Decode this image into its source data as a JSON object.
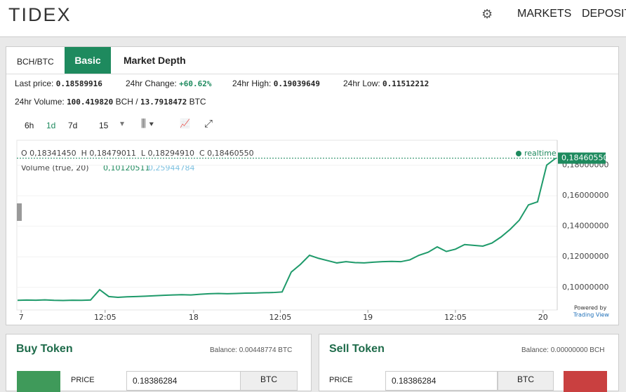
{
  "header": {
    "logo": "TIDEX",
    "nav": [
      "MARKETS",
      "DEPOSIT"
    ]
  },
  "tabs": [
    "BCH/BTC",
    "Basic",
    "Market Depth"
  ],
  "stats": {
    "last_label": "Last price:",
    "last": "0.18589916",
    "change_label": "24hr Change:",
    "change": "+60.62%",
    "high_label": "24hr High:",
    "high": "0.19039649",
    "low_label": "24hr Low:",
    "low": "0.11512212",
    "volume_label": "24hr Volume:",
    "volume": "100.419820",
    "volume_unit1": "BCH /",
    "volume2": "13.7918472",
    "volume_unit2": "BTC"
  },
  "toolbar": [
    "6h",
    "1d",
    "7d",
    "15"
  ],
  "chart_data": {
    "type": "line",
    "legend_ohlc": "O 0,18341450  H 0,18479011  L 0,18294910  C 0,18460550",
    "realtime": "realtime",
    "volume_label": "Volume (true, 20)",
    "volume_a": "0,10120511",
    "volume_b": "0,25944784",
    "price_tag": "0,18460550",
    "credit1": "Powered by",
    "credit2": "Trading View",
    "color": "#1e9a6a",
    "xlim": [
      0,
      59
    ],
    "ylim": [
      0.0898,
      0.1963
    ],
    "yticks": [
      {
        "value": 0.1,
        "label": "0,10000000"
      },
      {
        "value": 0.12,
        "label": "0,12000000"
      },
      {
        "value": 0.14,
        "label": "0,14000000"
      },
      {
        "value": 0.16,
        "label": "0,16000000"
      },
      {
        "value": 0.18,
        "label": "0,18000000"
      }
    ],
    "xticks": [
      {
        "value": 0.4,
        "label": "7"
      },
      {
        "value": 9.6,
        "label": "12:05"
      },
      {
        "value": 19.3,
        "label": "18"
      },
      {
        "value": 28.8,
        "label": "12:05"
      },
      {
        "value": 38.4,
        "label": "19"
      },
      {
        "value": 48,
        "label": "12:05"
      },
      {
        "value": 57.6,
        "label": "20"
      }
    ],
    "values": [
      0.0915,
      0.0917,
      0.0916,
      0.0918,
      0.0915,
      0.0914,
      0.0916,
      0.0915,
      0.0917,
      0.0985,
      0.094,
      0.0935,
      0.0938,
      0.094,
      0.0942,
      0.0945,
      0.0948,
      0.095,
      0.0952,
      0.095,
      0.0955,
      0.0958,
      0.096,
      0.0958,
      0.096,
      0.0962,
      0.0963,
      0.0965,
      0.0966,
      0.097,
      0.11,
      0.115,
      0.121,
      0.119,
      0.1175,
      0.116,
      0.1168,
      0.1162,
      0.116,
      0.1165,
      0.1168,
      0.117,
      0.1168,
      0.118,
      0.121,
      0.123,
      0.1265,
      0.1235,
      0.125,
      0.128,
      0.1275,
      0.127,
      0.129,
      0.133,
      0.138,
      0.144,
      0.154,
      0.156,
      0.18,
      0.1846
    ]
  },
  "buy": {
    "title": "Buy Token",
    "balance": "Balance: 0.00448774 BTC",
    "price_label": "PRICE",
    "price": "0.18386284",
    "unit": "BTC"
  },
  "sell": {
    "title": "Sell Token",
    "balance": "Balance: 0.00000000 BCH",
    "price_label": "PRICE",
    "price": "0.18386284",
    "unit": "BTC"
  }
}
